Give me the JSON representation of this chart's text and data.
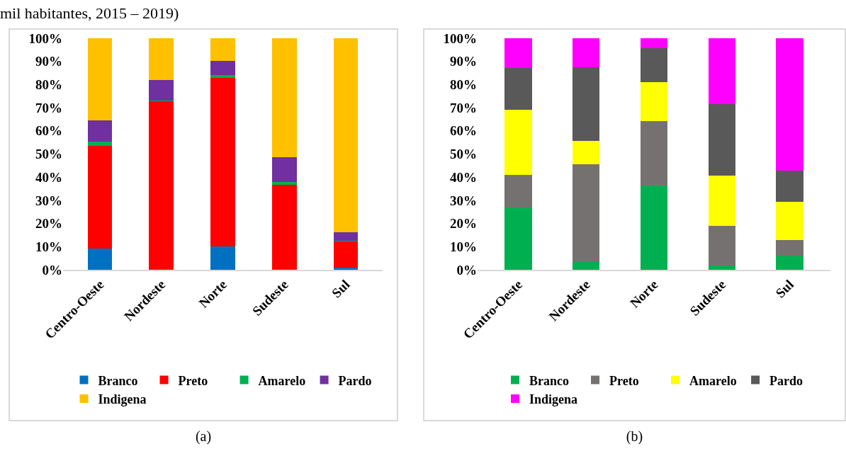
{
  "chart_data": [
    {
      "type": "bar",
      "title": "mil habitantes, 2015 – 2019)",
      "annotations": [
        "(a)"
      ],
      "stacked": true,
      "categories": [
        "Centro-Oeste",
        "Nordeste",
        "Norte",
        "Sudeste",
        "Sul"
      ],
      "series": [
        {
          "name": "Branco",
          "color": "#0070c0",
          "values": [
            9.3,
            0.4,
            10.2,
            0.2,
            1.0
          ]
        },
        {
          "name": "Preto",
          "color": "#ff0000",
          "values": [
            44.2,
            72.4,
            72.8,
            36.6,
            11.1
          ]
        },
        {
          "name": "Amarelo",
          "color": "#00b050",
          "values": [
            1.8,
            0.4,
            1.0,
            1.0,
            0.5
          ]
        },
        {
          "name": "Pardo",
          "color": "#7030a0",
          "values": [
            9.3,
            8.8,
            6.2,
            10.7,
            3.7
          ]
        },
        {
          "name": "Indigena",
          "color": "#ffc000",
          "values": [
            35.4,
            18.0,
            9.8,
            51.5,
            83.7
          ]
        }
      ],
      "ylim": [
        0,
        100
      ],
      "yticks": [
        {
          "value": 0,
          "label": "0%"
        },
        {
          "value": 10,
          "label": "10%"
        },
        {
          "value": 20,
          "label": "20%"
        },
        {
          "value": 30,
          "label": "30%"
        },
        {
          "value": 40,
          "label": "40%"
        },
        {
          "value": 50,
          "label": "50%"
        },
        {
          "value": 60,
          "label": "60%"
        },
        {
          "value": 70,
          "label": "70%"
        },
        {
          "value": 80,
          "label": "80%"
        },
        {
          "value": 90,
          "label": "90%"
        },
        {
          "value": 100,
          "label": "100%"
        }
      ],
      "grid": false,
      "legend": "bottom"
    },
    {
      "type": "bar",
      "annotations": [
        "(b)"
      ],
      "stacked": true,
      "categories": [
        "Centro-Oeste",
        "Nordeste",
        "Norte",
        "Sudeste",
        "Sul"
      ],
      "series": [
        {
          "name": "Branco",
          "color": "#00b050",
          "values": [
            27.0,
            3.3,
            36.4,
            1.9,
            6.2
          ]
        },
        {
          "name": "Preto",
          "color": "#767171",
          "values": [
            14.0,
            42.4,
            27.9,
            17.1,
            6.6
          ]
        },
        {
          "name": "Amarelo",
          "color": "#ffff00",
          "values": [
            28.1,
            9.9,
            16.6,
            21.7,
            16.5
          ]
        },
        {
          "name": "Pardo",
          "color": "#595959",
          "values": [
            18.1,
            31.9,
            14.7,
            31.0,
            13.5
          ]
        },
        {
          "name": "Indigena",
          "color": "#ff00ff",
          "values": [
            12.8,
            12.5,
            4.4,
            28.3,
            57.2
          ]
        }
      ],
      "ylim": [
        0,
        100
      ],
      "yticks": [
        {
          "value": 0,
          "label": "0%"
        },
        {
          "value": 10,
          "label": "10%"
        },
        {
          "value": 20,
          "label": "20%"
        },
        {
          "value": 30,
          "label": "30%"
        },
        {
          "value": 40,
          "label": "40%"
        },
        {
          "value": 50,
          "label": "50%"
        },
        {
          "value": 60,
          "label": "60%"
        },
        {
          "value": 70,
          "label": "70%"
        },
        {
          "value": 80,
          "label": "80%"
        },
        {
          "value": 90,
          "label": "90%"
        },
        {
          "value": 100,
          "label": "100%"
        }
      ],
      "grid": false,
      "legend": "bottom"
    }
  ]
}
